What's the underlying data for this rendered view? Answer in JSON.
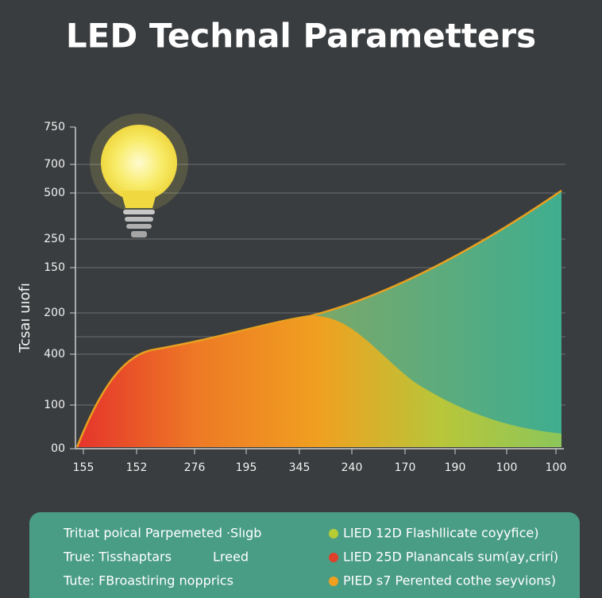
{
  "header": {
    "title": "LED Technal Parametters"
  },
  "chart": {
    "y_axis_label": "Tcsaı uıofı",
    "y_labels": [
      "750",
      "700",
      "500",
      "250",
      "150",
      "200",
      "400",
      "100",
      "00"
    ],
    "x_labels": [
      "155",
      "152",
      "276",
      "195",
      "345",
      "240",
      "170",
      "190",
      "100",
      "100"
    ]
  },
  "legend": {
    "left": [
      "Tritıat poical Parpemeted ·Slıgb",
      "True: Tisshaptars",
      "Lreed",
      "Tute: FBroastiring nopprics"
    ],
    "right": [
      {
        "label": "LIED 12D Flashllicate coyyfice)",
        "color": "#b5cc35"
      },
      {
        "label": "LIED 25D Planancals sum(ay,crirí)",
        "color": "#e0402a"
      },
      {
        "label": "PIED s7 Perented cothe seyvions)",
        "color": "#f0a020"
      }
    ]
  }
}
